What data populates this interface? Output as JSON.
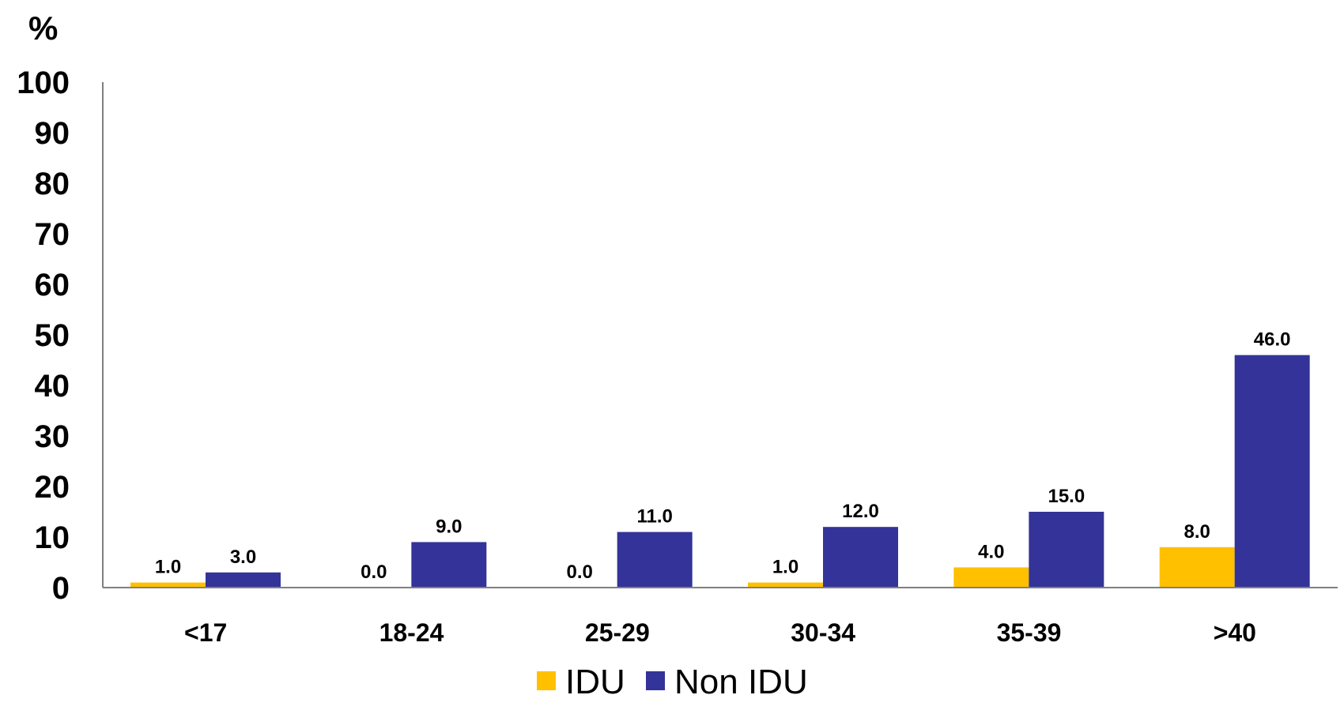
{
  "chart_data": {
    "type": "bar",
    "ylabel": "%",
    "ylim": [
      0,
      100
    ],
    "yticks": [
      "0",
      "10",
      "20",
      "30",
      "40",
      "50",
      "60",
      "70",
      "80",
      "90",
      "100"
    ],
    "categories": [
      "<17",
      "18-24",
      "25-29",
      "30-34",
      "35-39",
      ">40"
    ],
    "series": [
      {
        "name": "IDU",
        "color": "#FFC000",
        "values": [
          1.0,
          0.0,
          0.0,
          1.0,
          4.0,
          8.0
        ],
        "labels": [
          "1.0",
          "0.0",
          "0.0",
          "1.0",
          "4.0",
          "8.0"
        ]
      },
      {
        "name": "Non IDU",
        "color": "#333399",
        "values": [
          3.0,
          9.0,
          11.0,
          12.0,
          15.0,
          46.0
        ],
        "labels": [
          "3.0",
          "9.0",
          "11.0",
          "12.0",
          "15.0",
          "46.0"
        ]
      }
    ],
    "grid": false,
    "legend_position": "bottom"
  }
}
